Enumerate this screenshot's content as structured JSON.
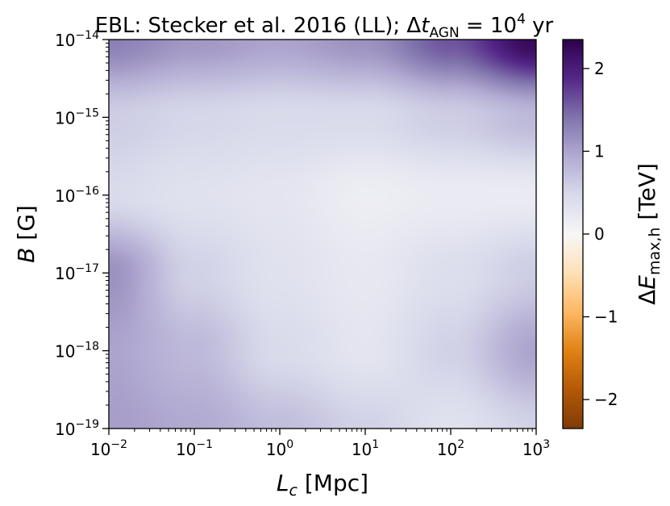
{
  "chart_data": {
    "type": "heatmap",
    "title": "EBL: Stecker et al. 2016 (LL); Δt_AGN = 10^4 yr",
    "title_parts": {
      "prefix": "EBL: Stecker et al. 2016 (LL); Δ",
      "var": "t",
      "var_sub": "AGN",
      "eq": " = 10",
      "exp": "4",
      "suffix": " yr"
    },
    "xlabel": "L_c [Mpc]",
    "xlabel_parts": {
      "var": "L",
      "sub": "c",
      "unit": " [Mpc]"
    },
    "ylabel": "B [G]",
    "ylabel_parts": {
      "var": "B",
      "unit": " [G]"
    },
    "xscale": "log",
    "yscale": "log",
    "xlim": [
      0.01,
      1000
    ],
    "ylim": [
      1e-19,
      1e-14
    ],
    "x_ticks": [
      {
        "value": 0.01,
        "base": "10",
        "exp": "−2"
      },
      {
        "value": 0.1,
        "base": "10",
        "exp": "−1"
      },
      {
        "value": 1,
        "base": "10",
        "exp": "0"
      },
      {
        "value": 10,
        "base": "10",
        "exp": "1"
      },
      {
        "value": 100,
        "base": "10",
        "exp": "2"
      },
      {
        "value": 1000,
        "base": "10",
        "exp": "3"
      }
    ],
    "y_ticks": [
      {
        "value": 1e-19,
        "base": "10",
        "exp": "−19"
      },
      {
        "value": 1e-18,
        "base": "10",
        "exp": "−18"
      },
      {
        "value": 1e-17,
        "base": "10",
        "exp": "−17"
      },
      {
        "value": 1e-16,
        "base": "10",
        "exp": "−16"
      },
      {
        "value": 1e-15,
        "base": "10",
        "exp": "−15"
      },
      {
        "value": 1e-14,
        "base": "10",
        "exp": "−14"
      }
    ],
    "grid_x_log10": [
      -2,
      -1,
      0,
      1,
      2,
      3
    ],
    "grid_y_log10": [
      -19,
      -18,
      -17,
      -16,
      -15,
      -14
    ],
    "z_grid": [
      [
        1.05,
        0.95,
        0.75,
        0.55,
        0.35,
        0.55
      ],
      [
        1.0,
        0.8,
        0.45,
        0.3,
        0.55,
        1.0
      ],
      [
        1.15,
        0.55,
        0.35,
        0.25,
        0.4,
        0.6
      ],
      [
        0.45,
        0.35,
        0.3,
        0.15,
        0.2,
        0.2
      ],
      [
        0.6,
        0.5,
        0.45,
        0.45,
        0.6,
        0.8
      ],
      [
        1.3,
        1.1,
        1.0,
        1.15,
        1.6,
        2.25
      ]
    ],
    "colorbar": {
      "label": "ΔE_max,h [TeV]",
      "label_parts": {
        "pre": "Δ",
        "var": "E",
        "sub": "max,h",
        "unit": " [TeV]"
      },
      "range": [
        -2.35,
        2.35
      ],
      "ticks": [
        {
          "value": -2,
          "label": "−2"
        },
        {
          "value": -1,
          "label": "−1"
        },
        {
          "value": 0,
          "label": "0"
        },
        {
          "value": 1,
          "label": "1"
        },
        {
          "value": 2,
          "label": "2"
        }
      ],
      "colormap": "PuOr"
    }
  }
}
